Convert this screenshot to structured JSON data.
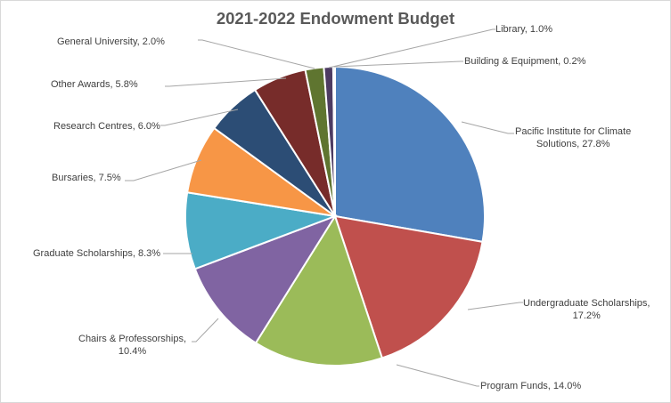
{
  "chart_data": {
    "type": "pie",
    "title": "2021-2022 Endowment Budget",
    "start_angle_deg": 0,
    "direction": "clockwise",
    "slices": [
      {
        "label": "Pacific Institute for Climate Solutions",
        "value": 27.8,
        "display": "Pacific Institute for Climate Solutions, 27.8%",
        "color": "#4f81bd"
      },
      {
        "label": "Undergraduate Scholarships",
        "value": 17.2,
        "display": "Undergraduate Scholarships, 17.2%",
        "color": "#c0504d"
      },
      {
        "label": "Program Funds",
        "value": 14.0,
        "display": "Program Funds, 14.0%",
        "color": "#9bbb59"
      },
      {
        "label": "Chairs & Professorships",
        "value": 10.4,
        "display": "Chairs & Professorships, 10.4%",
        "color": "#8064a2"
      },
      {
        "label": "Graduate Scholarships",
        "value": 8.3,
        "display": "Graduate Scholarships, 8.3%",
        "color": "#4bacc6"
      },
      {
        "label": "Bursaries",
        "value": 7.5,
        "display": "Bursaries, 7.5%",
        "color": "#f79646"
      },
      {
        "label": "Research Centres",
        "value": 6.0,
        "display": "Research Centres, 6.0%",
        "color": "#2c4d75"
      },
      {
        "label": "Other Awards",
        "value": 5.8,
        "display": "Other Awards, 5.8%",
        "color": "#772c2a"
      },
      {
        "label": "General University",
        "value": 2.0,
        "display": "General University, 2.0%",
        "color": "#5f7530"
      },
      {
        "label": "Library",
        "value": 1.0,
        "display": "Library, 1.0%",
        "color": "#4d3b62"
      },
      {
        "label": "Building & Equipment",
        "value": 0.2,
        "display": "Building & Equipment, 0.2%",
        "color": "#276a7c"
      }
    ],
    "legend": "none",
    "data_labels": "category, percentage with leader lines"
  },
  "labels": {
    "pics_line1": "Pacific Institute for Climate",
    "pics_line2": "Solutions, 27.8%",
    "ugs_line1": "Undergraduate Scholarships,",
    "ugs_line2": "17.2%",
    "program": "Program Funds, 14.0%",
    "chairs_line1": "Chairs & Professorships,",
    "chairs_line2": "10.4%",
    "grad": "Graduate Scholarships, 8.3%",
    "bursaries": "Bursaries, 7.5%",
    "research": "Research Centres, 6.0%",
    "other": "Other Awards, 5.8%",
    "general": "General University, 2.0%",
    "library": "Library, 1.0%",
    "building": "Building & Equipment, 0.2%"
  }
}
